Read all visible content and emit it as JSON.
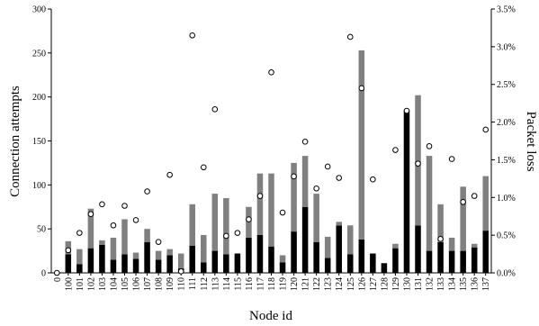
{
  "chart_data": {
    "type": "bar",
    "xlabel": "Node id",
    "ylabel": "Connection attempts",
    "ylabel_right": "Packet loss",
    "ylim": [
      0,
      300
    ],
    "ylim_right": [
      0,
      3.5
    ],
    "yticks": [
      "0",
      "50",
      "100",
      "150",
      "200",
      "250",
      "300"
    ],
    "yticks_right": [
      "0.0%",
      "0.5%",
      "1.0%",
      "1.5%",
      "2.0%",
      "2.5%",
      "3.0%",
      "3.5%"
    ],
    "stacked": true,
    "grid": false,
    "legend": false,
    "categories": [
      "0",
      "100",
      "101",
      "102",
      "103",
      "104",
      "105",
      "106",
      "107",
      "108",
      "109",
      "110",
      "111",
      "112",
      "113",
      "114",
      "115",
      "116",
      "117",
      "118",
      "119",
      "120",
      "121",
      "122",
      "123",
      "124",
      "125",
      "126",
      "127",
      "128",
      "129",
      "130",
      "131",
      "132",
      "133",
      "134",
      "135",
      "136",
      "137"
    ],
    "series": [
      {
        "axis": "left",
        "mark": "bar",
        "color": "#000000",
        "values": [
          0,
          21,
          10,
          28,
          32,
          15,
          21,
          16,
          35,
          15,
          20,
          5,
          31,
          12,
          25,
          21,
          22,
          40,
          43,
          30,
          12,
          47,
          75,
          35,
          17,
          54,
          21,
          38,
          22,
          11,
          28,
          185,
          54,
          25,
          35,
          25,
          25,
          29,
          48
        ]
      },
      {
        "axis": "left",
        "mark": "bar",
        "color": "#808080",
        "values": [
          0,
          15,
          17,
          45,
          5,
          25,
          40,
          7,
          15,
          10,
          7,
          17,
          47,
          31,
          65,
          64,
          0,
          35,
          70,
          83,
          8,
          78,
          58,
          55,
          24,
          4,
          33,
          215,
          0,
          0,
          5,
          0,
          148,
          108,
          43,
          15,
          73,
          4,
          62
        ]
      },
      {
        "axis": "right",
        "mark": "circle",
        "color": "#ffffff",
        "values": [
          0.0,
          0.3,
          0.53,
          0.78,
          0.91,
          0.63,
          0.89,
          0.7,
          1.08,
          0.41,
          1.3,
          0.02,
          3.15,
          1.4,
          2.17,
          0.49,
          0.53,
          0.71,
          1.02,
          2.66,
          0.8,
          1.28,
          1.74,
          1.12,
          1.41,
          1.26,
          3.13,
          2.45,
          1.24,
          null,
          1.63,
          2.15,
          1.45,
          1.68,
          0.45,
          1.51,
          0.94,
          1.02,
          1.9
        ]
      }
    ]
  }
}
